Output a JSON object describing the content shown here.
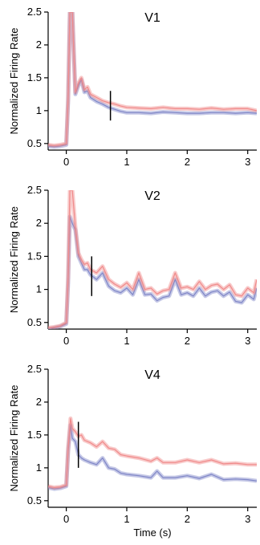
{
  "chart_data": [
    {
      "type": "line",
      "title": "V1",
      "ylabel": "Normalized Firing Rate",
      "xlabel": "",
      "xlim": [
        -0.3,
        3.15
      ],
      "ylim": [
        0.4,
        2.5
      ],
      "yticks": [
        "0.5",
        "1",
        "1.5",
        "2",
        "2.5"
      ],
      "xticks": [
        "0",
        "1",
        "2",
        "3"
      ],
      "marker_time": 0.73,
      "marker_range": [
        0.85,
        1.3
      ],
      "series": [
        {
          "color": "#f08a8a",
          "x": [
            -0.3,
            -0.2,
            -0.1,
            0.0,
            0.03,
            0.06,
            0.1,
            0.15,
            0.2,
            0.25,
            0.3,
            0.35,
            0.4,
            0.5,
            0.6,
            0.7,
            0.8,
            0.9,
            1.0,
            1.2,
            1.4,
            1.6,
            1.8,
            2.0,
            2.2,
            2.4,
            2.6,
            2.8,
            3.0,
            3.15
          ],
          "y": [
            0.48,
            0.47,
            0.48,
            0.5,
            1.2,
            2.5,
            2.5,
            1.28,
            1.42,
            1.5,
            1.32,
            1.36,
            1.25,
            1.2,
            1.15,
            1.12,
            1.1,
            1.07,
            1.05,
            1.04,
            1.03,
            1.05,
            1.03,
            1.03,
            1.02,
            1.04,
            1.02,
            1.03,
            1.03,
            1.0
          ]
        },
        {
          "color": "#7f86c7",
          "x": [
            -0.3,
            -0.2,
            -0.1,
            0.0,
            0.03,
            0.06,
            0.1,
            0.15,
            0.2,
            0.25,
            0.3,
            0.35,
            0.4,
            0.5,
            0.6,
            0.7,
            0.8,
            0.9,
            1.0,
            1.2,
            1.4,
            1.6,
            1.8,
            2.0,
            2.2,
            2.4,
            2.6,
            2.8,
            3.0,
            3.15
          ],
          "y": [
            0.46,
            0.45,
            0.46,
            0.48,
            1.15,
            2.5,
            2.5,
            1.25,
            1.38,
            1.47,
            1.28,
            1.3,
            1.2,
            1.14,
            1.1,
            1.05,
            1.02,
            0.99,
            0.97,
            0.97,
            0.96,
            0.98,
            0.97,
            0.96,
            0.96,
            0.97,
            0.97,
            0.96,
            0.97,
            0.96
          ]
        }
      ]
    },
    {
      "type": "line",
      "title": "V2",
      "ylabel": "Normalized Firing Rate",
      "xlabel": "",
      "xlim": [
        -0.3,
        3.15
      ],
      "ylim": [
        0.4,
        2.5
      ],
      "yticks": [
        "0.5",
        "1",
        "1.5",
        "2",
        "2.5"
      ],
      "xticks": [
        "0",
        "1",
        "2",
        "3"
      ],
      "marker_time": 0.42,
      "marker_range": [
        0.9,
        1.5
      ],
      "series": [
        {
          "color": "#f08a8a",
          "x": [
            -0.3,
            -0.2,
            -0.1,
            0.0,
            0.03,
            0.06,
            0.1,
            0.15,
            0.2,
            0.25,
            0.3,
            0.35,
            0.4,
            0.5,
            0.6,
            0.7,
            0.8,
            0.9,
            1.0,
            1.1,
            1.2,
            1.3,
            1.4,
            1.5,
            1.6,
            1.7,
            1.8,
            1.9,
            2.0,
            2.1,
            2.2,
            2.3,
            2.4,
            2.5,
            2.6,
            2.7,
            2.8,
            2.9,
            3.0,
            3.1,
            3.15
          ],
          "y": [
            0.42,
            0.43,
            0.45,
            0.5,
            1.2,
            2.5,
            2.5,
            1.95,
            1.55,
            1.45,
            1.38,
            1.4,
            1.3,
            1.25,
            1.35,
            1.15,
            1.08,
            1.03,
            1.1,
            1.0,
            1.25,
            1.0,
            1.02,
            0.93,
            0.98,
            1.0,
            1.25,
            1.02,
            1.04,
            1.0,
            1.12,
            1.0,
            1.06,
            1.08,
            1.0,
            1.07,
            0.92,
            0.9,
            1.02,
            0.95,
            1.15
          ]
        },
        {
          "color": "#7f86c7",
          "x": [
            -0.3,
            -0.2,
            -0.1,
            0.0,
            0.03,
            0.06,
            0.1,
            0.15,
            0.2,
            0.25,
            0.3,
            0.35,
            0.4,
            0.5,
            0.6,
            0.7,
            0.8,
            0.9,
            1.0,
            1.1,
            1.2,
            1.3,
            1.4,
            1.5,
            1.6,
            1.7,
            1.8,
            1.9,
            2.0,
            2.1,
            2.2,
            2.3,
            2.4,
            2.5,
            2.6,
            2.7,
            2.8,
            2.9,
            3.0,
            3.1,
            3.15
          ],
          "y": [
            0.4,
            0.42,
            0.44,
            0.48,
            1.1,
            2.1,
            2.0,
            1.9,
            1.5,
            1.4,
            1.3,
            1.3,
            1.22,
            1.15,
            1.25,
            1.05,
            0.98,
            0.95,
            1.02,
            0.92,
            1.15,
            0.92,
            0.93,
            0.83,
            0.88,
            0.9,
            1.15,
            0.92,
            0.95,
            0.9,
            1.02,
            0.9,
            0.96,
            0.98,
            0.9,
            0.96,
            0.82,
            0.8,
            0.92,
            0.85,
            1.02
          ]
        }
      ]
    },
    {
      "type": "line",
      "title": "V4",
      "ylabel": "Normalized Firing Rate",
      "xlabel": "Time (s)",
      "xlim": [
        -0.3,
        3.15
      ],
      "ylim": [
        0.4,
        2.5
      ],
      "yticks": [
        "0.5",
        "1",
        "1.5",
        "2",
        "2.5"
      ],
      "xticks": [
        "0",
        "1",
        "2",
        "3"
      ],
      "marker_time": 0.2,
      "marker_range": [
        1.0,
        1.7
      ],
      "series": [
        {
          "color": "#f08a8a",
          "x": [
            -0.3,
            -0.2,
            -0.1,
            0.0,
            0.03,
            0.07,
            0.1,
            0.15,
            0.2,
            0.25,
            0.3,
            0.4,
            0.5,
            0.6,
            0.7,
            0.8,
            0.9,
            1.0,
            1.2,
            1.4,
            1.5,
            1.6,
            1.8,
            2.0,
            2.2,
            2.4,
            2.6,
            2.8,
            3.0,
            3.15
          ],
          "y": [
            0.72,
            0.7,
            0.71,
            0.74,
            1.3,
            1.75,
            1.6,
            1.55,
            1.48,
            1.5,
            1.42,
            1.38,
            1.32,
            1.4,
            1.3,
            1.28,
            1.2,
            1.18,
            1.15,
            1.1,
            1.15,
            1.08,
            1.08,
            1.12,
            1.08,
            1.12,
            1.06,
            1.07,
            1.05,
            1.05
          ]
        },
        {
          "color": "#7f86c7",
          "x": [
            -0.3,
            -0.2,
            -0.1,
            0.0,
            0.03,
            0.07,
            0.1,
            0.15,
            0.2,
            0.25,
            0.3,
            0.4,
            0.5,
            0.6,
            0.7,
            0.8,
            0.9,
            1.0,
            1.2,
            1.4,
            1.5,
            1.6,
            1.8,
            2.0,
            2.2,
            2.4,
            2.6,
            2.8,
            3.0,
            3.15
          ],
          "y": [
            0.7,
            0.68,
            0.69,
            0.72,
            1.25,
            1.65,
            1.45,
            1.4,
            1.2,
            1.15,
            1.12,
            1.08,
            1.05,
            1.15,
            1.0,
            0.98,
            0.92,
            0.9,
            0.88,
            0.85,
            0.95,
            0.85,
            0.85,
            0.88,
            0.84,
            0.9,
            0.82,
            0.83,
            0.82,
            0.8
          ]
        }
      ]
    }
  ]
}
